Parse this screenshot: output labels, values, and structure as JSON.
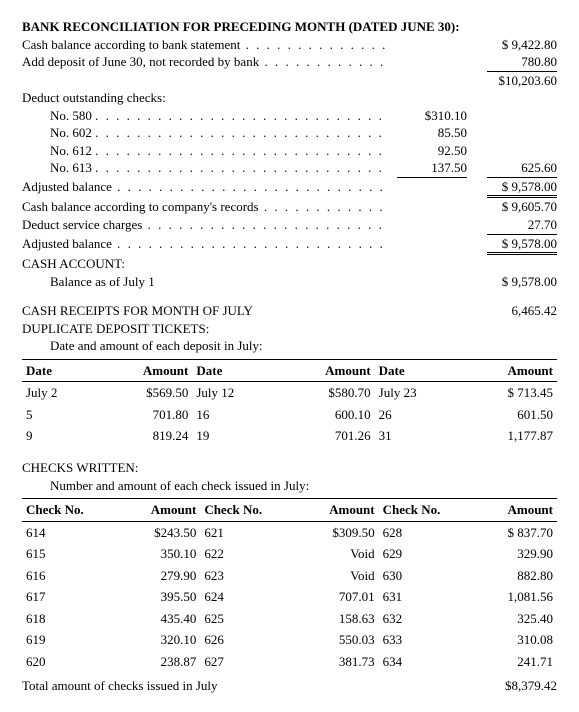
{
  "title1": "BANK RECONCILIATION FOR PRECEDING MONTH (DATED JUNE 30):",
  "line_cash_bank": {
    "label": "Cash balance according to bank statement",
    "amt_b": "$ 9,422.80"
  },
  "line_add_dep": {
    "label": "Add deposit of June 30, not recorded by bank",
    "amt_b": "780.80"
  },
  "subtot1_b": "$10,203.60",
  "deduct_hdr": "Deduct outstanding checks:",
  "checks_out": [
    {
      "label": "No. 580",
      "a": "$310.10",
      "b": ""
    },
    {
      "label": "No. 602",
      "a": "85.50",
      "b": ""
    },
    {
      "label": "No. 612",
      "a": "92.50",
      "b": ""
    },
    {
      "label": "No. 613",
      "a": "137.50",
      "b": "625.60"
    }
  ],
  "adj_bal_1": {
    "label": "Adjusted balance",
    "b": "$ 9,578.00"
  },
  "line_cash_co": {
    "label": "Cash balance according to company's records",
    "b": "$ 9,605.70"
  },
  "line_svc": {
    "label": "Deduct service charges",
    "b": "27.70"
  },
  "adj_bal_2": {
    "label": "Adjusted balance",
    "b": "$ 9,578.00"
  },
  "cash_acct_hdr": "CASH ACCOUNT:",
  "bal_jul1": {
    "label": "Balance as of July 1",
    "b": "$ 9,578.00"
  },
  "receipts_hdr": "CASH RECEIPTS FOR MONTH OF JULY",
  "receipts_b": "6,465.42",
  "dup_hdr": "DUPLICATE DEPOSIT TICKETS:",
  "dup_sub": "Date and amount of each deposit in July:",
  "dep_cols": [
    "Date",
    "Amount",
    "Date",
    "Amount",
    "Date",
    "Amount"
  ],
  "deposits": [
    [
      "July 2",
      "$569.50",
      "July 12",
      "$580.70",
      "July 23",
      "$ 713.45"
    ],
    [
      "5",
      "701.80",
      "16",
      "600.10",
      "26",
      "601.50"
    ],
    [
      "9",
      "819.24",
      "19",
      "701.26",
      "31",
      "1,177.87"
    ]
  ],
  "chk_hdr": "CHECKS WRITTEN:",
  "chk_sub": "Number and amount of each check issued in July:",
  "chk_cols": [
    "Check No.",
    "Amount",
    "Check No.",
    "Amount",
    "Check No.",
    "Amount"
  ],
  "chk_rows": [
    [
      "614",
      "$243.50",
      "621",
      "$309.50",
      "628",
      "$ 837.70"
    ],
    [
      "615",
      "350.10",
      "622",
      "Void",
      "629",
      "329.90"
    ],
    [
      "616",
      "279.90",
      "623",
      "Void",
      "630",
      "882.80"
    ],
    [
      "617",
      "395.50",
      "624",
      "707.01",
      "631",
      "1,081.56"
    ],
    [
      "618",
      "435.40",
      "625",
      "158.63",
      "632",
      "325.40"
    ],
    [
      "619",
      "320.10",
      "626",
      "550.03",
      "633",
      "310.08"
    ],
    [
      "620",
      "238.87",
      "627",
      "381.73",
      "634",
      "241.71"
    ]
  ],
  "chk_total": {
    "label": "Total amount of checks issued in July",
    "b": "$8,379.42"
  }
}
